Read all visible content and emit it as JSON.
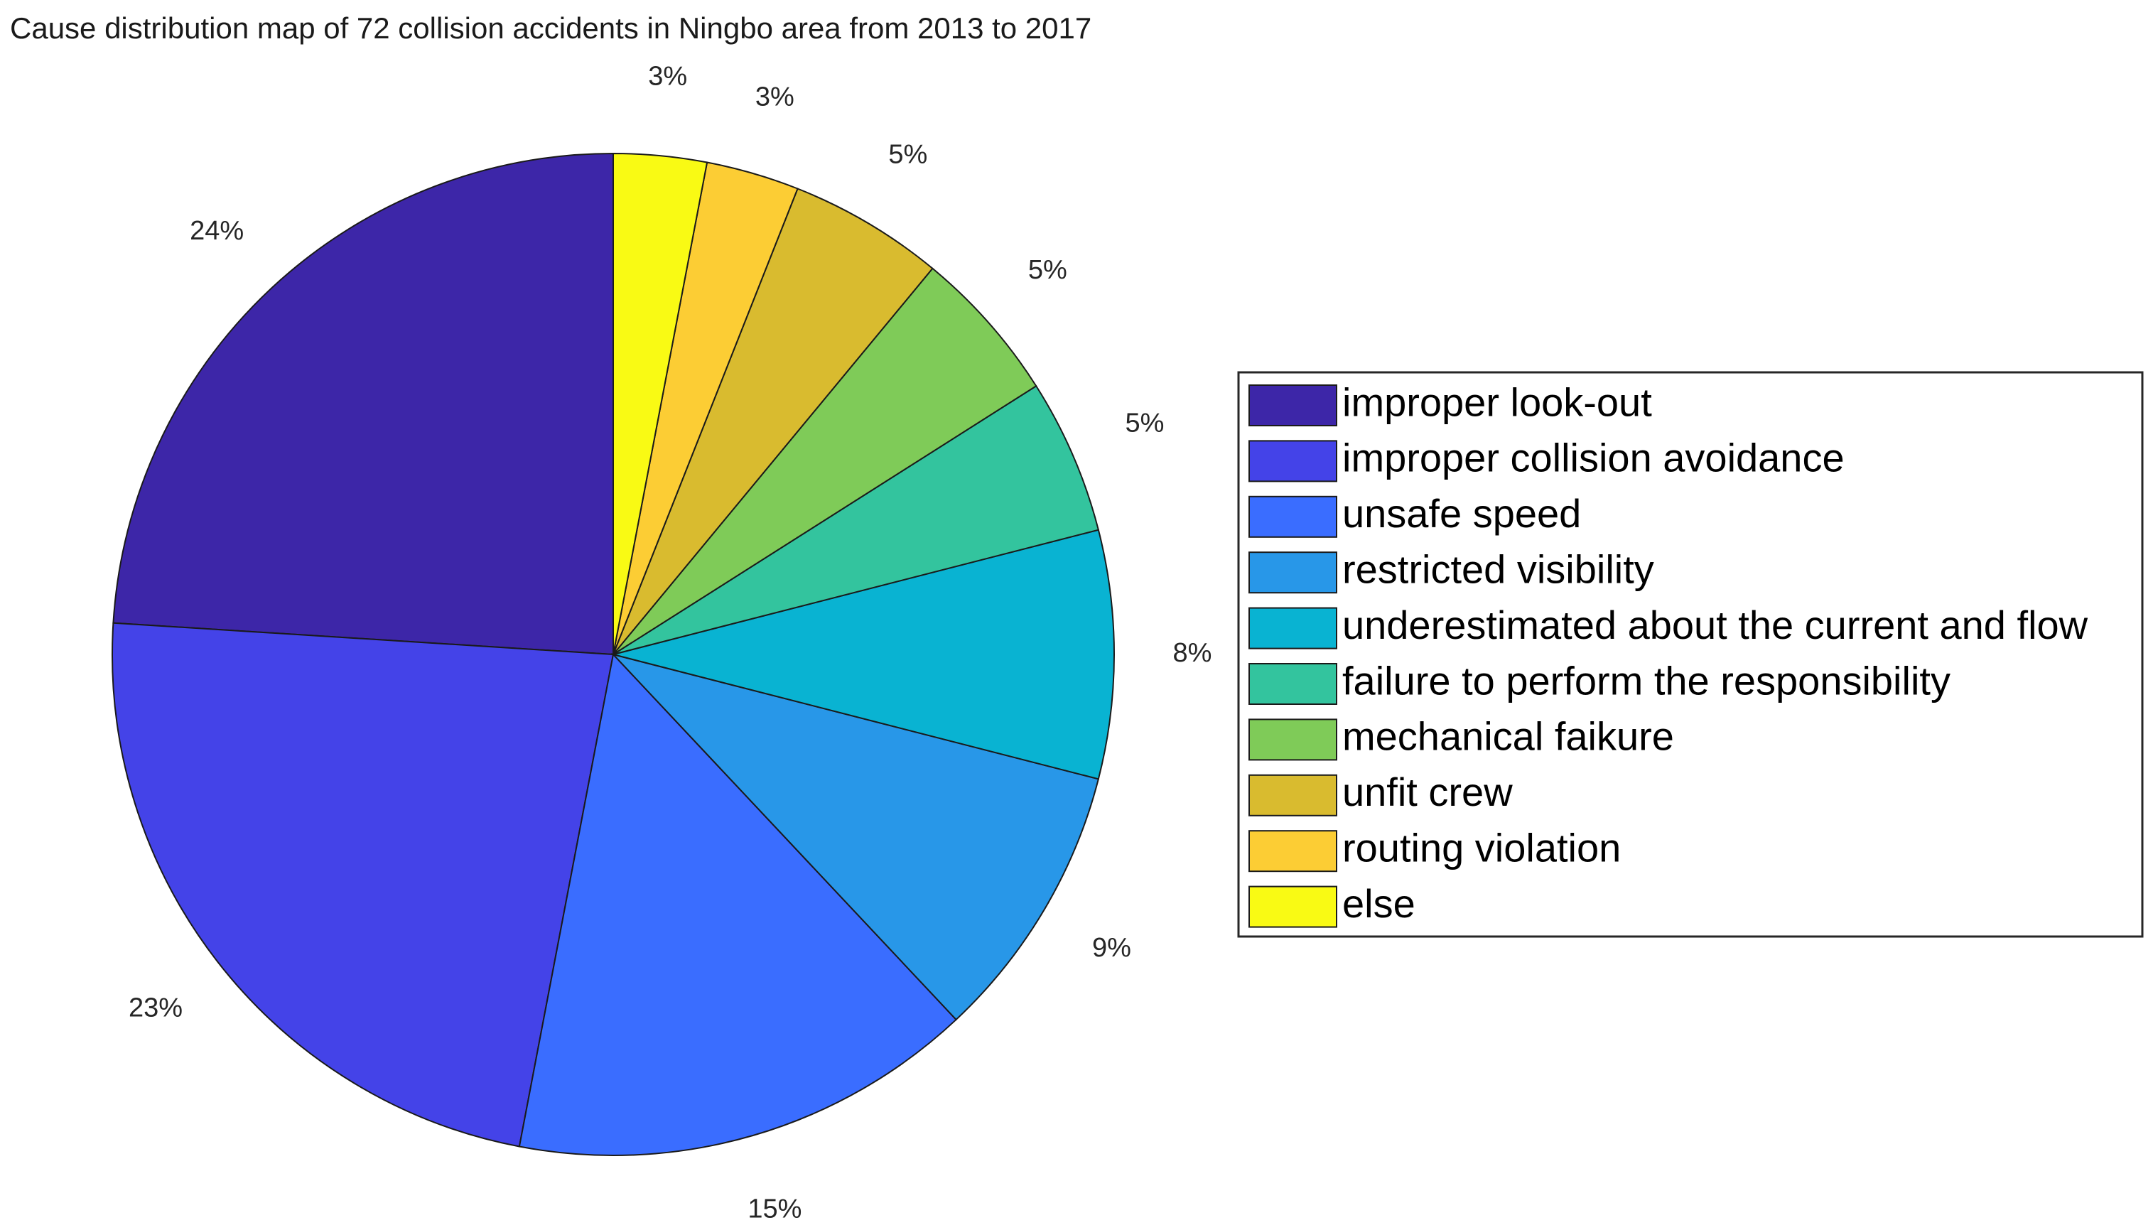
{
  "chart_data": {
    "type": "pie",
    "title": "Cause distribution map of 72 collision accidents in Ningbo area from 2013 to 2017",
    "slices": [
      {
        "label": "improper look-out",
        "value": 24,
        "percent_label": "24%",
        "color": "#3D26A8"
      },
      {
        "label": "improper collision avoidance",
        "value": 23,
        "percent_label": "23%",
        "color": "#4443E8"
      },
      {
        "label": "unsafe speed",
        "value": 15,
        "percent_label": "15%",
        "color": "#3A6DFF"
      },
      {
        "label": "restricted visibility",
        "value": 9,
        "percent_label": "9%",
        "color": "#2897E8"
      },
      {
        "label": "underestimated about the current and flow",
        "value": 8,
        "percent_label": "8%",
        "color": "#09B3D2"
      },
      {
        "label": "failure to perform the responsibility",
        "value": 5,
        "percent_label": "5%",
        "color": "#33C49E"
      },
      {
        "label": "mechanical faikure",
        "value": 5,
        "percent_label": "5%",
        "color": "#7FCB58"
      },
      {
        "label": "unfit crew",
        "value": 5,
        "percent_label": "5%",
        "color": "#D9BB2F"
      },
      {
        "label": "routing violation",
        "value": 3,
        "percent_label": "3%",
        "color": "#FCCD34"
      },
      {
        "label": "else",
        "value": 3,
        "percent_label": "3%",
        "color": "#F9FA14"
      }
    ],
    "legend_position": "right",
    "direction": "counterclockwise",
    "start": "top"
  }
}
